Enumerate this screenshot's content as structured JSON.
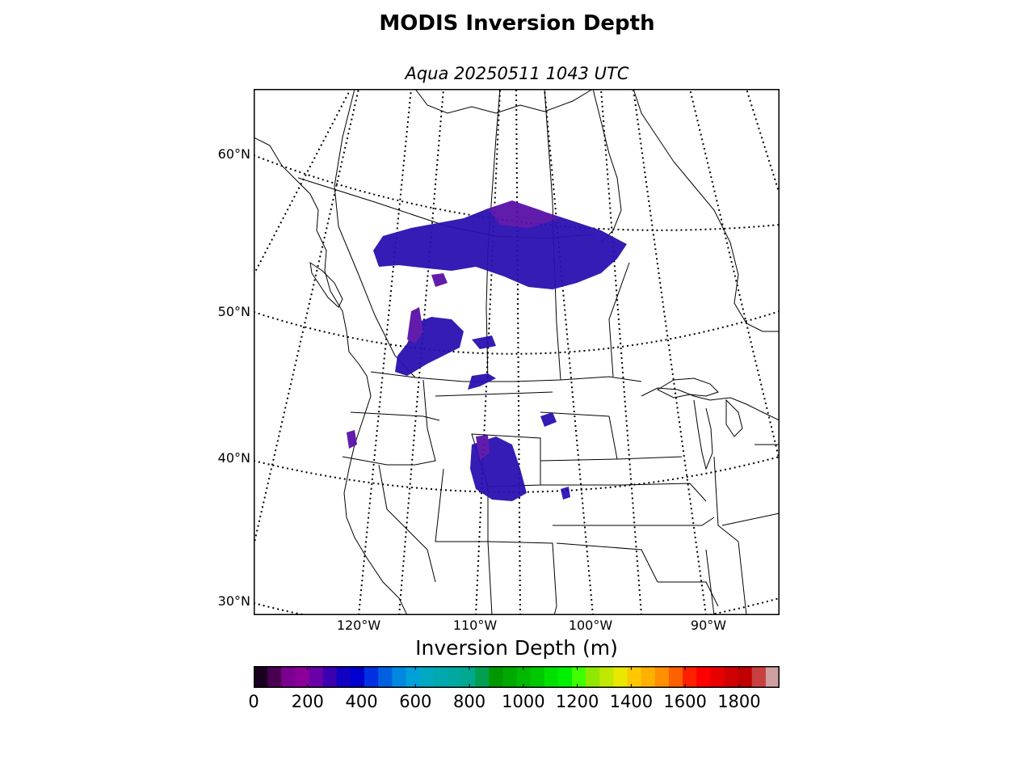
{
  "title": "MODIS Inversion Depth",
  "subtitle": "Aqua 20250511 1043 UTC",
  "map": {
    "lat_labels": [
      "60°N",
      "50°N",
      "40°N",
      "30°N"
    ],
    "lon_labels": [
      "120°W",
      "110°W",
      "100°W",
      "90°W"
    ],
    "projection": "lambert-conformal",
    "data_color_primary": "#2a10b0",
    "data_color_secondary": "#5a10a8"
  },
  "colorbar": {
    "title": "Inversion Depth (m)",
    "range": [
      0,
      1950
    ],
    "tick_labels": [
      "0",
      "200",
      "400",
      "600",
      "800",
      "1000",
      "1200",
      "1400",
      "1600",
      "1800"
    ],
    "colors": [
      "#1a0020",
      "#4a0050",
      "#7a0090",
      "#8a0098",
      "#6a00a8",
      "#3a00b0",
      "#1000c0",
      "#0000d0",
      "#0030e0",
      "#0060e0",
      "#0088e0",
      "#00a0d8",
      "#00a8c0",
      "#00a8b0",
      "#00a8a0",
      "#00a890",
      "#00a050",
      "#009800",
      "#00a800",
      "#00b800",
      "#00c800",
      "#00e000",
      "#00f000",
      "#40ff00",
      "#90e800",
      "#c0e800",
      "#e8e800",
      "#ffc800",
      "#ffb000",
      "#ff9000",
      "#ff6000",
      "#ff2000",
      "#ff0000",
      "#e80000",
      "#d00000",
      "#c00000",
      "#c84040",
      "#d0a0a0"
    ]
  }
}
